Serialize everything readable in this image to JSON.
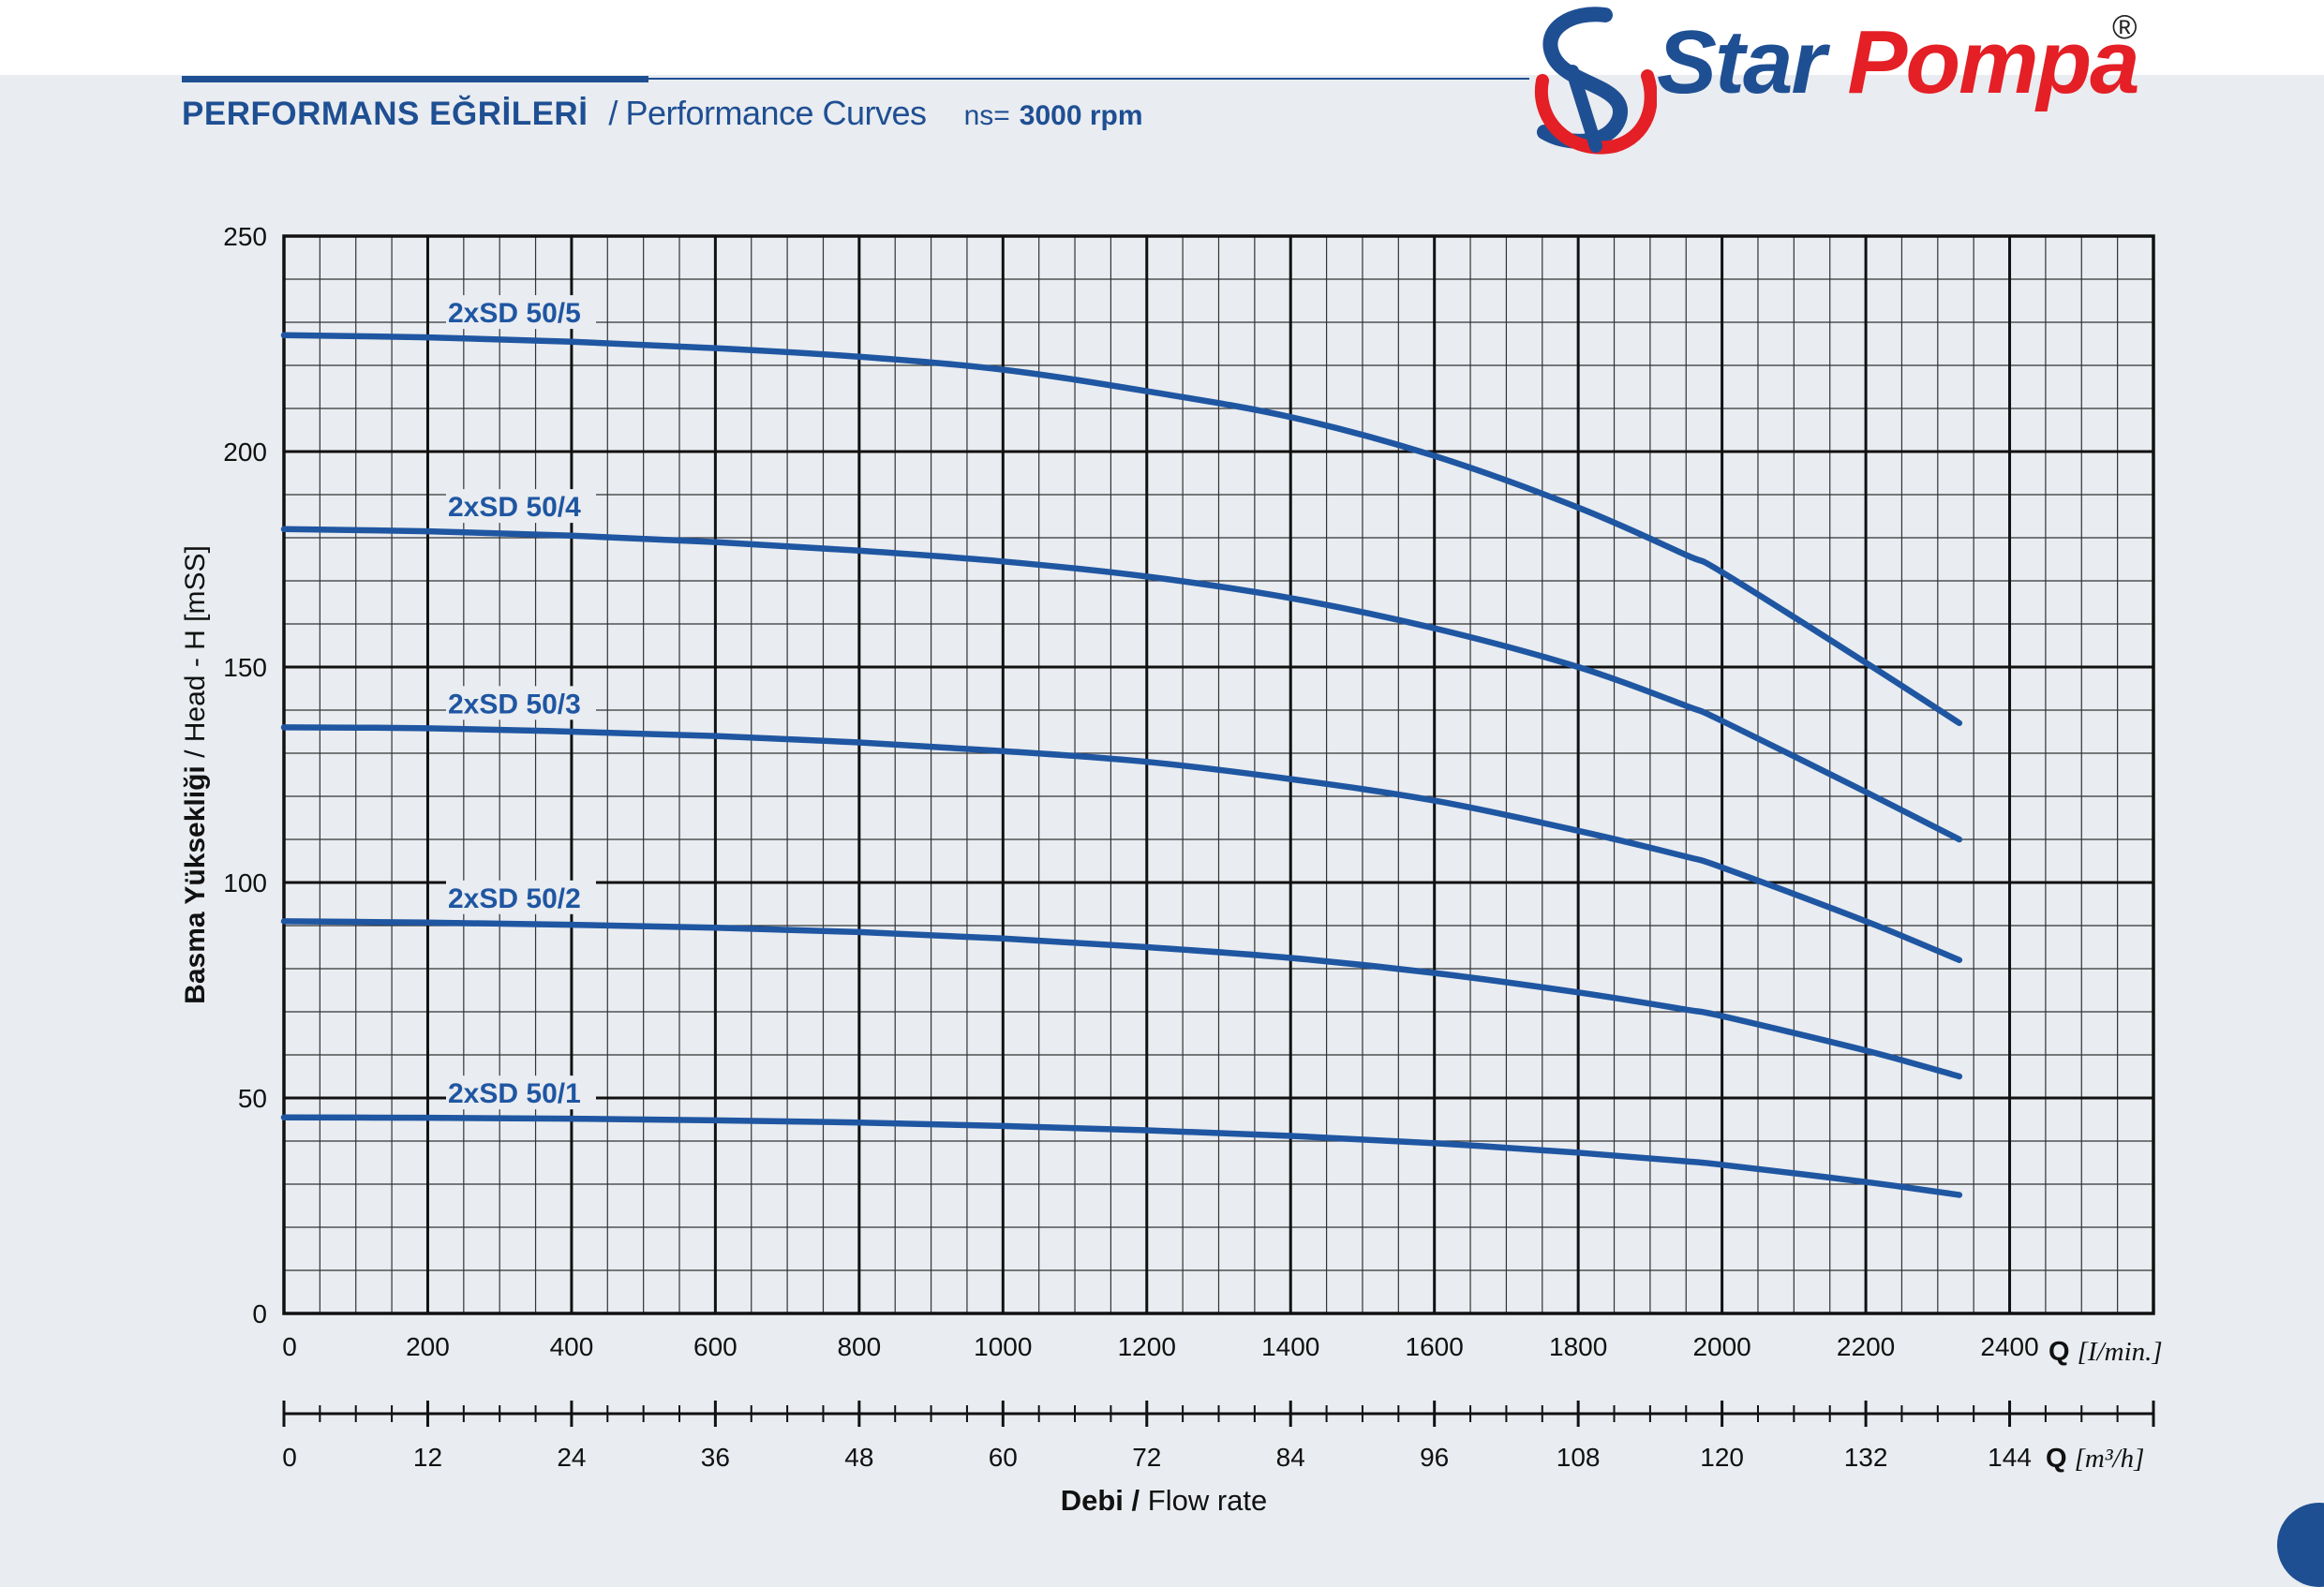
{
  "header": {
    "title_tr": "PERFORMANS EĞRİLERİ",
    "separator": "/",
    "title_en": "Performance Curves",
    "rpm_label": "ns=",
    "rpm_value": "3000 rpm"
  },
  "logo": {
    "brand_star": "Star",
    "brand_pompa": "Pompa",
    "registered": "®"
  },
  "colors": {
    "curve": "#1f56a2",
    "grid_major": "#111111",
    "grid_minor": "#333333",
    "header_blue": "#1f4f93",
    "logo_red": "#e41f26"
  },
  "chart_data": {
    "type": "line",
    "ylabel_tr": "Basma Yüksekliği",
    "ylabel_sep": " / ",
    "ylabel_en": "Head - H [mSS]",
    "xlabel_tr": "Debi",
    "xlabel_sep": " / ",
    "xlabel_en": "Flow rate",
    "x_unit_lmin_label": "Q [I/min.]",
    "x_unit_m3h_label": "Q [m³/h]",
    "xlim": [
      0,
      2600
    ],
    "ylim": [
      0,
      250
    ],
    "yticks": [
      "0",
      "50",
      "100",
      "150",
      "200",
      "250"
    ],
    "xticks_lmin": [
      "0",
      "200",
      "400",
      "600",
      "800",
      "1000",
      "1200",
      "1400",
      "1600",
      "1800",
      "2000",
      "2200",
      "2400"
    ],
    "xticks_m3h": [
      "0",
      "12",
      "24",
      "36",
      "48",
      "60",
      "72",
      "84",
      "96",
      "108",
      "120",
      "132",
      "144"
    ],
    "grid": true,
    "x": [
      0,
      200,
      400,
      600,
      800,
      1000,
      1200,
      1400,
      1600,
      1800,
      1950,
      2000,
      2200,
      2330
    ],
    "series": [
      {
        "name": "2xSD 50/5",
        "values": [
          227,
          226.5,
          225.5,
          224,
          222,
          219,
          214,
          208,
          199,
          187,
          176,
          172,
          151,
          137
        ]
      },
      {
        "name": "2xSD 50/4",
        "values": [
          182,
          181.5,
          180.5,
          179,
          177,
          174.5,
          171,
          166,
          159,
          150,
          141,
          137.5,
          121,
          110
        ]
      },
      {
        "name": "2xSD 50/3",
        "values": [
          136,
          135.8,
          135,
          134,
          132.5,
          130.5,
          128,
          124,
          119,
          112,
          106,
          103.5,
          91,
          82
        ]
      },
      {
        "name": "2xSD 50/2",
        "values": [
          91,
          90.7,
          90.2,
          89.5,
          88.5,
          87,
          85,
          82.5,
          79,
          74.5,
          70.5,
          69,
          61,
          55
        ]
      },
      {
        "name": "2xSD 50/1",
        "values": [
          45.5,
          45.4,
          45.2,
          44.8,
          44.3,
          43.5,
          42.5,
          41.2,
          39.5,
          37.3,
          35.3,
          34.5,
          30.5,
          27.5
        ]
      }
    ]
  }
}
